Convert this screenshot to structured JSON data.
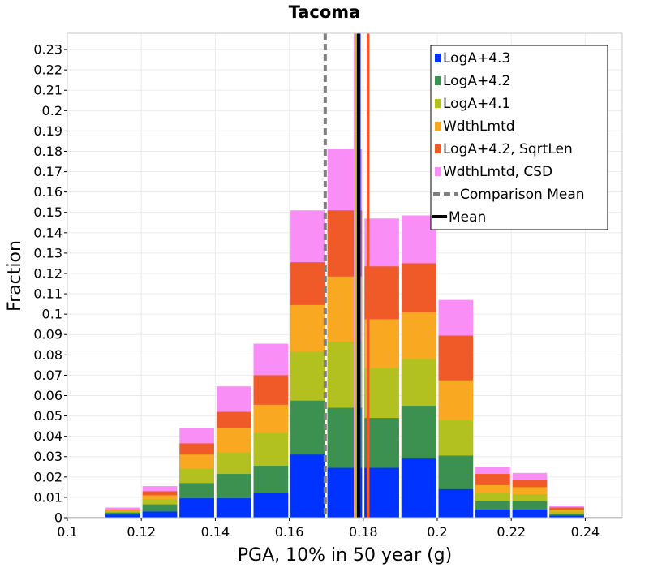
{
  "chart_data": {
    "type": "bar",
    "stacked": true,
    "title": "Tacoma",
    "xlabel": "PGA, 10% in 50 year (g)",
    "ylabel": "Fraction",
    "xlim": [
      0.1,
      0.25
    ],
    "ylim": [
      0,
      0.238
    ],
    "bin_width": 0.01,
    "x_ticks": [
      "0.1",
      "0.12",
      "0.14",
      "0.16",
      "0.18",
      "0.2",
      "0.22",
      "0.24"
    ],
    "x_tick_values": [
      0.1,
      0.12,
      0.14,
      0.16,
      0.18,
      0.2,
      0.22,
      0.24
    ],
    "y_ticks": [
      "0",
      "0.01",
      "0.02",
      "0.03",
      "0.04",
      "0.05",
      "0.06",
      "0.07",
      "0.08",
      "0.09",
      "0.1",
      "0.11",
      "0.12",
      "0.13",
      "0.14",
      "0.15",
      "0.16",
      "0.17",
      "0.18",
      "0.19",
      "0.2",
      "0.21",
      "0.22",
      "0.23"
    ],
    "y_tick_values": [
      0,
      0.01,
      0.02,
      0.03,
      0.04,
      0.05,
      0.06,
      0.07,
      0.08,
      0.09,
      0.1,
      0.11,
      0.12,
      0.13,
      0.14,
      0.15,
      0.16,
      0.17,
      0.18,
      0.19,
      0.2,
      0.21,
      0.22,
      0.23
    ],
    "bin_centers": [
      0.105,
      0.115,
      0.125,
      0.135,
      0.145,
      0.155,
      0.165,
      0.175,
      0.185,
      0.195,
      0.205,
      0.215,
      0.225,
      0.235,
      0.245
    ],
    "series": [
      {
        "name": "LogA+4.3",
        "color": "#0033ff",
        "cumulative": [
          0,
          0.0015,
          0.003,
          0.0095,
          0.0095,
          0.012,
          0.031,
          0.0245,
          0.0245,
          0.029,
          0.014,
          0.004,
          0.004,
          0.001,
          0
        ]
      },
      {
        "name": "LogA+4.2",
        "color": "#3d9150",
        "cumulative": [
          0,
          0.0025,
          0.0065,
          0.017,
          0.0215,
          0.0255,
          0.0575,
          0.054,
          0.049,
          0.055,
          0.0305,
          0.008,
          0.008,
          0.002,
          0
        ]
      },
      {
        "name": "LogA+4.1",
        "color": "#b2c11f",
        "cumulative": [
          0,
          0.0035,
          0.009,
          0.024,
          0.032,
          0.0415,
          0.0815,
          0.0865,
          0.0735,
          0.078,
          0.048,
          0.012,
          0.0115,
          0.003,
          0
        ]
      },
      {
        "name": "WdthLmtd",
        "color": "#f9a822",
        "cumulative": [
          0,
          0.0035,
          0.011,
          0.031,
          0.044,
          0.0555,
          0.1045,
          0.1185,
          0.0975,
          0.101,
          0.0675,
          0.016,
          0.015,
          0.004,
          0
        ]
      },
      {
        "name": "LogA+4.2, SqrtLen",
        "color": "#f05a28",
        "cumulative": [
          0,
          0.004,
          0.013,
          0.0365,
          0.052,
          0.07,
          0.1255,
          0.151,
          0.1235,
          0.125,
          0.0895,
          0.0215,
          0.0185,
          0.005,
          0
        ]
      },
      {
        "name": "WdthLmtd, CSD",
        "color": "#fa8ef7",
        "cumulative": [
          0,
          0.005,
          0.0155,
          0.044,
          0.0645,
          0.0855,
          0.151,
          0.181,
          0.147,
          0.1485,
          0.107,
          0.025,
          0.022,
          0.006,
          0
        ]
      }
    ],
    "vertical_lines": [
      {
        "name": "Comparison Mean",
        "x": 0.1697,
        "color": "#808080",
        "style": "dashed"
      },
      {
        "name": "WdthLmtd, CSD",
        "x": 0.1778,
        "color": "#fa8ef7",
        "style": "solid"
      },
      {
        "name": "LogA+4.1",
        "x": 0.1781,
        "color": "#b2c11f",
        "style": "solid"
      },
      {
        "name": "WdthLmtd",
        "x": 0.1784,
        "color": "#f9a822",
        "style": "solid"
      },
      {
        "name": "LogA+4.3",
        "x": 0.1789,
        "color": "#0033ff",
        "style": "solid"
      },
      {
        "name": "Mean",
        "x": 0.1787,
        "color": "#000000",
        "style": "solid"
      },
      {
        "name": "LogA+4.2, SqrtLen",
        "x": 0.1813,
        "color": "#f05a28",
        "style": "solid"
      }
    ],
    "legend": {
      "position": "top-right",
      "entries": [
        {
          "label": "LogA+4.3",
          "color": "#0033ff",
          "kind": "box"
        },
        {
          "label": "LogA+4.2",
          "color": "#3d9150",
          "kind": "box"
        },
        {
          "label": "LogA+4.1",
          "color": "#b2c11f",
          "kind": "box"
        },
        {
          "label": "WdthLmtd",
          "color": "#f9a822",
          "kind": "box"
        },
        {
          "label": "LogA+4.2, SqrtLen",
          "color": "#f05a28",
          "kind": "box"
        },
        {
          "label": "WdthLmtd, CSD",
          "color": "#fa8ef7",
          "kind": "box"
        },
        {
          "label": "Comparison Mean",
          "color": "#808080",
          "kind": "dashed"
        },
        {
          "label": "Mean",
          "color": "#000000",
          "kind": "line"
        }
      ]
    },
    "grid": true
  }
}
